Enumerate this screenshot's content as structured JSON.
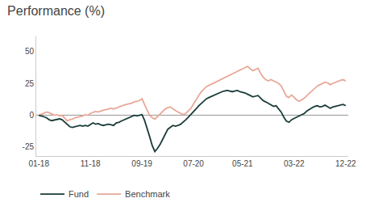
{
  "chart_data": {
    "type": "line",
    "title": "Performance (%)",
    "categories": [
      "01-18",
      null,
      null,
      null,
      null,
      null,
      null,
      null,
      null,
      null,
      null,
      null,
      null,
      null,
      null,
      null,
      null,
      null,
      null,
      null,
      "11-18",
      null,
      null,
      null,
      null,
      null,
      null,
      null,
      null,
      null,
      null,
      null,
      null,
      null,
      null,
      null,
      null,
      null,
      null,
      null,
      "09-19",
      null,
      null,
      null,
      null,
      null,
      null,
      null,
      null,
      null,
      null,
      null,
      null,
      null,
      null,
      null,
      null,
      null,
      null,
      null,
      "07-20",
      null,
      null,
      null,
      null,
      null,
      null,
      null,
      null,
      null,
      null,
      null,
      null,
      null,
      null,
      null,
      null,
      null,
      null,
      "05-21",
      null,
      null,
      null,
      null,
      null,
      null,
      null,
      null,
      null,
      null,
      null,
      null,
      null,
      null,
      null,
      null,
      null,
      null,
      null,
      "03-22",
      null,
      null,
      null,
      null,
      null,
      null,
      null,
      null,
      null,
      null,
      null,
      null,
      null,
      null,
      null,
      null,
      null,
      null,
      null,
      "12-22"
    ],
    "series": [
      {
        "name": "Benchmark",
        "color": "#e8a898",
        "values": [
          0.0,
          1.0,
          2.0,
          2.5,
          2.0,
          1.0,
          0.0,
          0.5,
          -0.5,
          0.0,
          -2.5,
          -4.5,
          -3.5,
          -3.0,
          -2.0,
          -1.5,
          -1.0,
          -0.5,
          0.5,
          0.0,
          1.5,
          2.5,
          3.0,
          2.5,
          3.5,
          4.0,
          4.5,
          5.0,
          5.5,
          5.0,
          5.5,
          6.5,
          7.5,
          8.0,
          8.5,
          9.0,
          9.5,
          10.5,
          11.0,
          11.5,
          13.0,
          8.0,
          4.0,
          0.0,
          -2.0,
          -3.0,
          -1.0,
          1.0,
          3.0,
          5.0,
          6.0,
          6.5,
          5.0,
          3.5,
          2.5,
          1.5,
          0.5,
          1.5,
          3.5,
          5.5,
          9.0,
          12.5,
          15.5,
          18.5,
          20.5,
          22.5,
          23.5,
          24.5,
          25.5,
          26.5,
          27.5,
          28.5,
          29.5,
          30.5,
          31.5,
          32.5,
          33.5,
          34.5,
          35.5,
          36.5,
          37.5,
          38.5,
          36.5,
          35.0,
          36.0,
          37.0,
          33.0,
          30.0,
          28.0,
          27.0,
          28.0,
          27.0,
          26.0,
          25.0,
          23.0,
          19.0,
          15.0,
          14.0,
          16.0,
          14.0,
          12.0,
          11.0,
          12.0,
          13.5,
          15.5,
          17.5,
          19.0,
          21.0,
          23.0,
          24.0,
          25.0,
          26.0,
          25.5,
          24.0,
          25.0,
          26.0,
          27.0,
          27.5,
          28.0,
          27.0
        ]
      },
      {
        "name": "Fund",
        "color": "#1a3c3a",
        "values": [
          0.0,
          -0.5,
          -1.2,
          -2.0,
          -3.5,
          -4.2,
          -3.8,
          -3.0,
          -2.8,
          -3.5,
          -5.5,
          -7.5,
          -9.0,
          -9.5,
          -9.0,
          -8.5,
          -8.0,
          -8.5,
          -8.0,
          -8.5,
          -7.0,
          -6.0,
          -7.0,
          -6.5,
          -7.5,
          -8.0,
          -7.5,
          -7.0,
          -7.5,
          -8.0,
          -6.0,
          -5.5,
          -4.5,
          -3.5,
          -2.5,
          -1.5,
          -0.5,
          0.0,
          -0.5,
          0.0,
          0.5,
          -4.0,
          -10.0,
          -17.0,
          -24.0,
          -28.5,
          -26.0,
          -23.0,
          -19.0,
          -15.0,
          -11.0,
          -9.5,
          -8.0,
          -8.5,
          -8.0,
          -7.0,
          -5.5,
          -3.5,
          -1.5,
          0.5,
          2.5,
          5.0,
          7.5,
          9.5,
          11.5,
          13.0,
          14.0,
          15.0,
          16.0,
          17.0,
          18.0,
          18.5,
          19.0,
          19.5,
          19.0,
          18.5,
          19.0,
          19.5,
          18.5,
          18.0,
          17.5,
          16.5,
          15.5,
          14.5,
          15.0,
          15.5,
          13.5,
          11.5,
          10.5,
          9.5,
          8.5,
          7.0,
          7.5,
          5.0,
          2.5,
          -1.5,
          -4.5,
          -5.5,
          -3.5,
          -2.5,
          -1.5,
          -0.5,
          0.5,
          1.5,
          3.5,
          5.0,
          6.0,
          7.0,
          7.5,
          6.5,
          7.0,
          8.0,
          6.5,
          5.5,
          6.5,
          7.0,
          7.5,
          8.0,
          8.5,
          7.5
        ]
      }
    ],
    "ylim": [
      -32,
      62
    ],
    "yticks": [
      -25,
      0,
      25,
      50
    ],
    "grid": false,
    "legend": "below"
  }
}
